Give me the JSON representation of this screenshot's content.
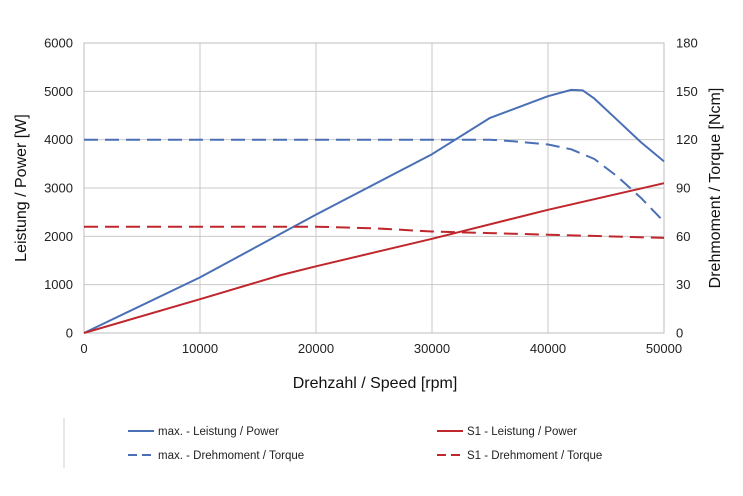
{
  "chart_data": {
    "type": "line",
    "xlabel": "Drehzahl / Speed [rpm]",
    "ylabel": "Leistung / Power [W]",
    "y2label": "Drehmoment / Torque [Ncm]",
    "xlim": [
      0,
      50000
    ],
    "ylim": [
      0,
      6000
    ],
    "y2lim": [
      0,
      180
    ],
    "x_ticks": [
      "0",
      "10000",
      "20000",
      "30000",
      "40000",
      "50000"
    ],
    "y_ticks": [
      "0",
      "1000",
      "2000",
      "3000",
      "4000",
      "5000",
      "6000"
    ],
    "y2_ticks": [
      "0",
      "30",
      "60",
      "90",
      "120",
      "150",
      "180"
    ],
    "grid": true,
    "legend_position": "bottom",
    "series": [
      {
        "name": "max. - Leistung / Power",
        "axis": "left",
        "style": "solid",
        "color": "#4a6fb5",
        "x": [
          0,
          10000,
          20000,
          30000,
          35000,
          40000,
          42000,
          43000,
          44000,
          46000,
          48000,
          50000
        ],
        "y": [
          0,
          1150,
          2450,
          3700,
          4450,
          4900,
          5030,
          5020,
          4850,
          4400,
          3950,
          3550
        ]
      },
      {
        "name": "max. - Drehmoment / Torque",
        "axis": "right",
        "style": "dashed",
        "color": "#4a6fb5",
        "x": [
          0,
          10000,
          20000,
          30000,
          35000,
          37000,
          40000,
          42000,
          44000,
          46000,
          48000,
          50000
        ],
        "y": [
          120,
          120,
          120,
          120,
          120,
          119,
          117,
          114,
          108,
          97,
          84,
          69
        ]
      },
      {
        "name": "S1 - Leistung / Power",
        "axis": "left",
        "style": "solid",
        "color": "#c0272d",
        "x": [
          0,
          10000,
          17000,
          20000,
          30000,
          40000,
          50000
        ],
        "y": [
          0,
          700,
          1200,
          1380,
          1950,
          2550,
          3100
        ]
      },
      {
        "name": "S1 - Drehmoment / Torque",
        "axis": "right",
        "style": "dashed",
        "color": "#c0272d",
        "x": [
          0,
          10000,
          20000,
          25000,
          30000,
          35000,
          40000,
          45000,
          50000
        ],
        "y": [
          66,
          66,
          66,
          65,
          63,
          62,
          61,
          60,
          59
        ]
      }
    ]
  }
}
